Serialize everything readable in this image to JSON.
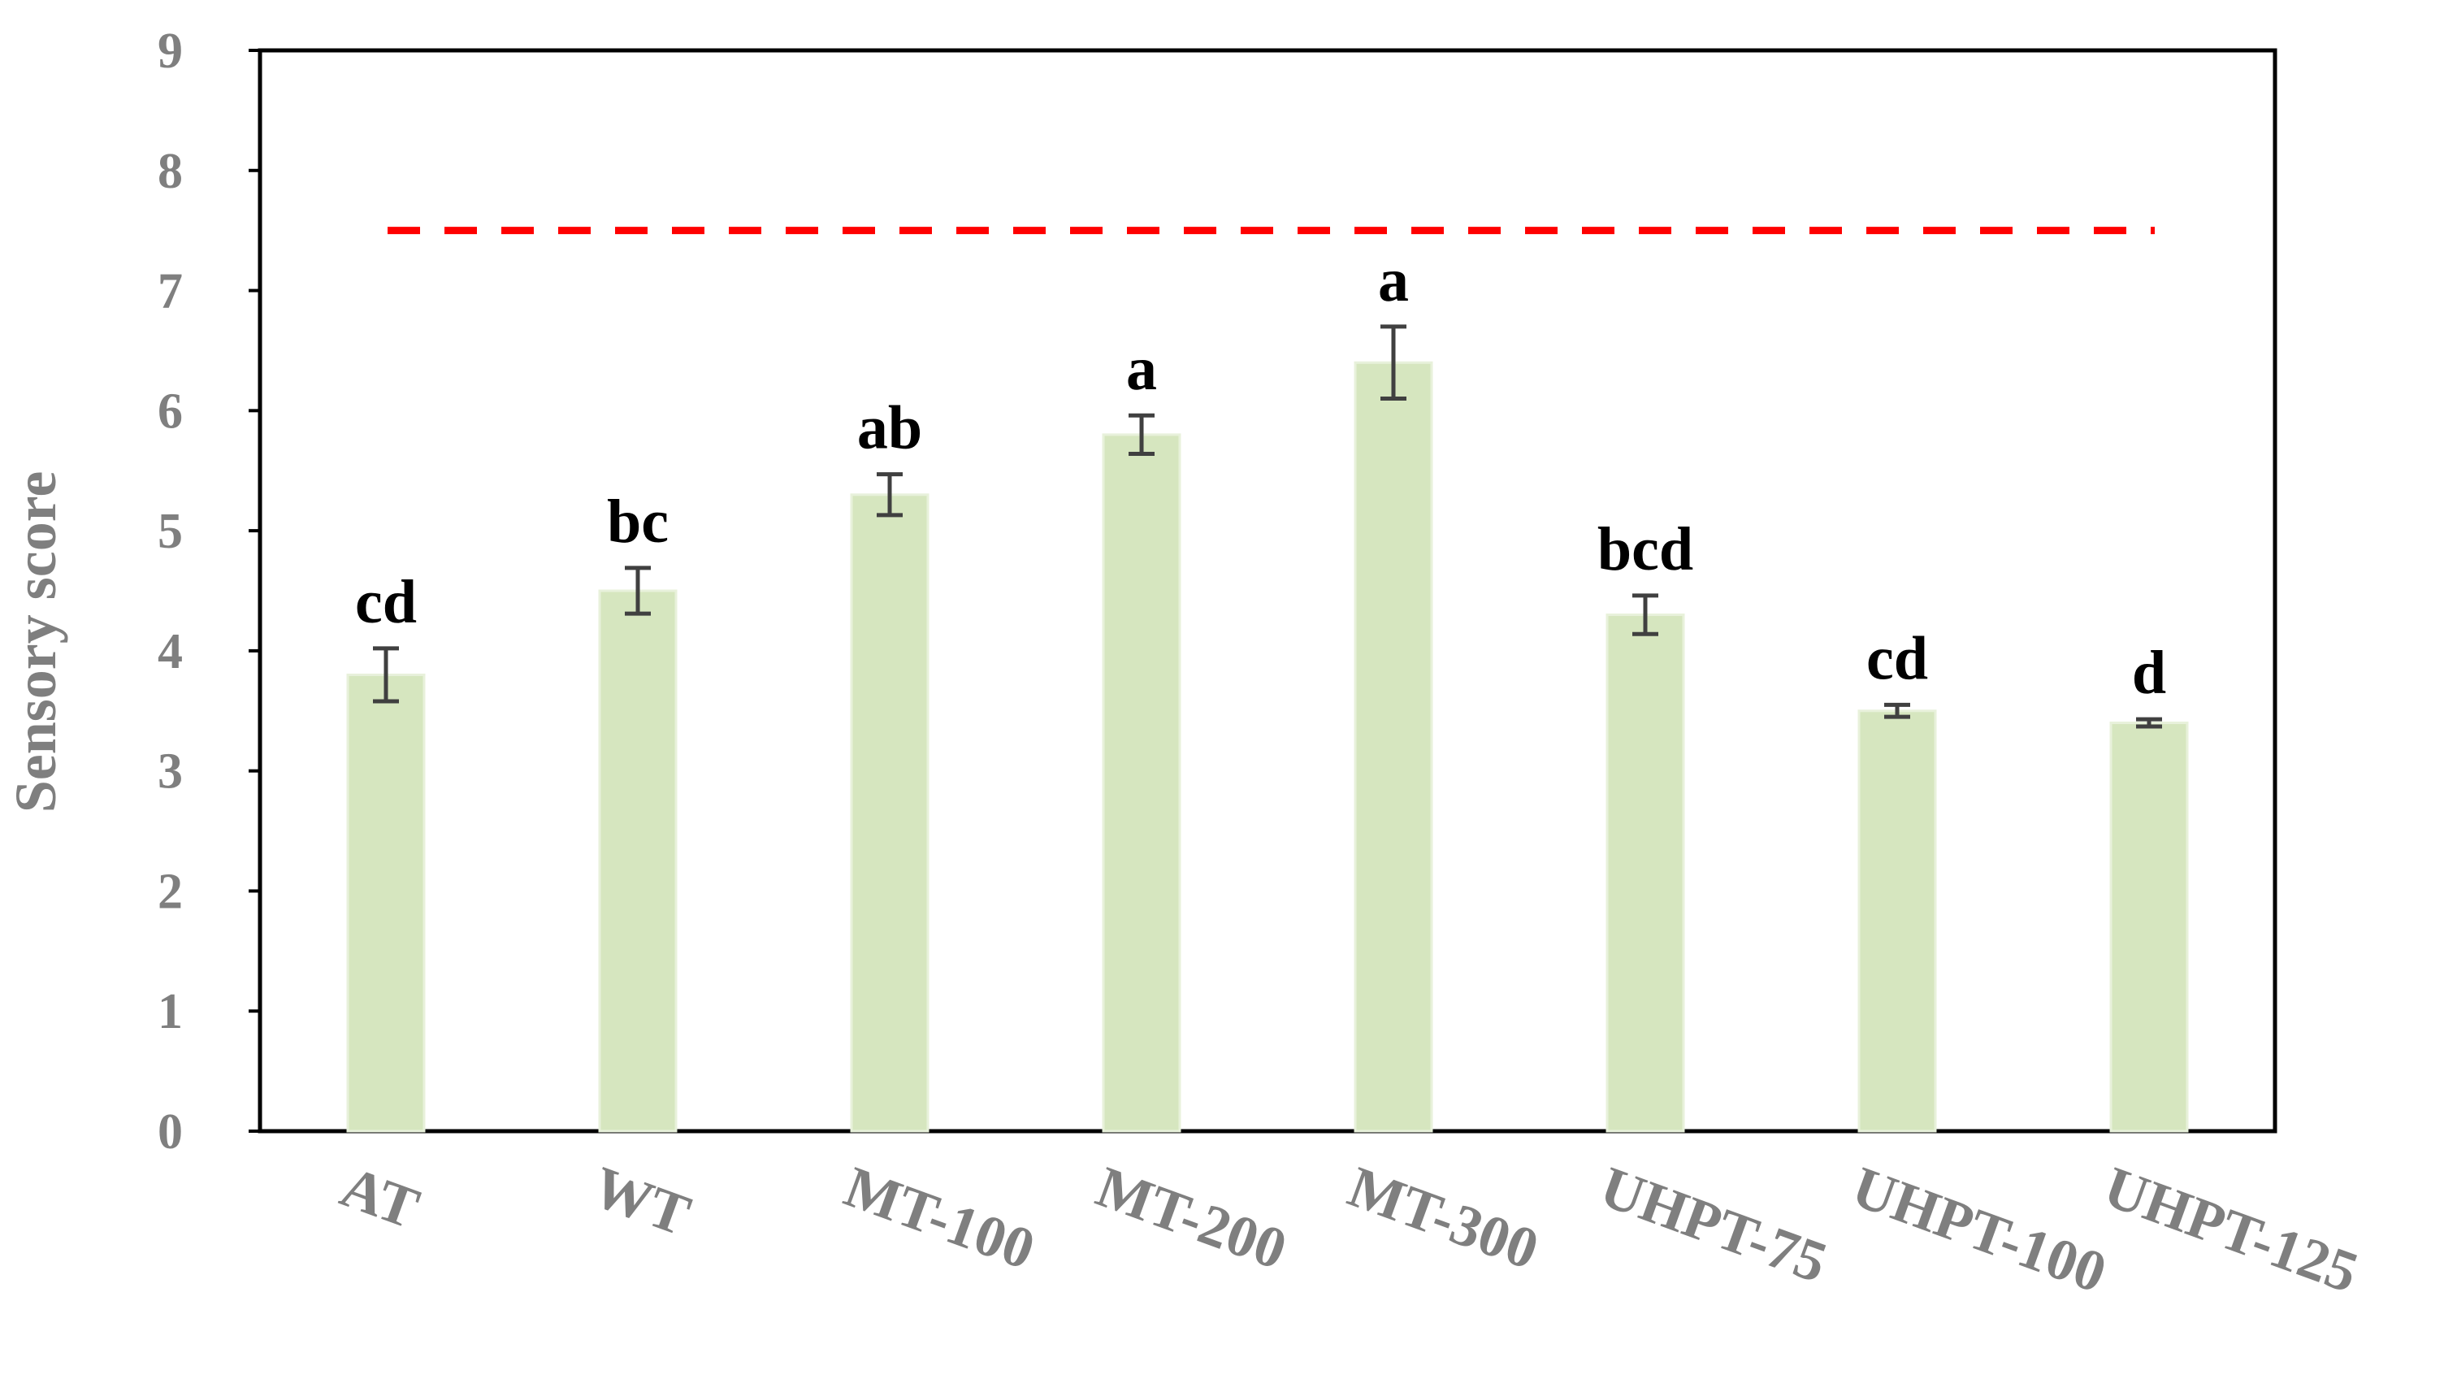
{
  "chart_data": {
    "type": "bar",
    "title": "",
    "xlabel": "",
    "ylabel": "Sensory score",
    "ylim": [
      0,
      9
    ],
    "yticks": [
      0,
      1,
      2,
      3,
      4,
      5,
      6,
      7,
      8,
      9
    ],
    "grid": false,
    "legend": "none",
    "categories": [
      "AT",
      "WT",
      "MT-100",
      "MT-200",
      "MT-300",
      "UHPT-75",
      "UHPT-100",
      "UHPT-125"
    ],
    "series": [
      {
        "values": [
          3.8,
          4.5,
          5.3,
          5.8,
          6.4,
          4.3,
          3.5,
          3.4
        ],
        "errors": [
          0.22,
          0.19,
          0.17,
          0.16,
          0.3,
          0.16,
          0.05,
          0.03
        ],
        "color": "#d6e6bf"
      }
    ],
    "significance_labels": [
      "cd",
      "bc",
      "ab",
      "a",
      "a",
      "bcd",
      "cd",
      "d"
    ],
    "reference_line": {
      "y": 7.5,
      "style": "dashed",
      "color": "#ff0000"
    }
  }
}
